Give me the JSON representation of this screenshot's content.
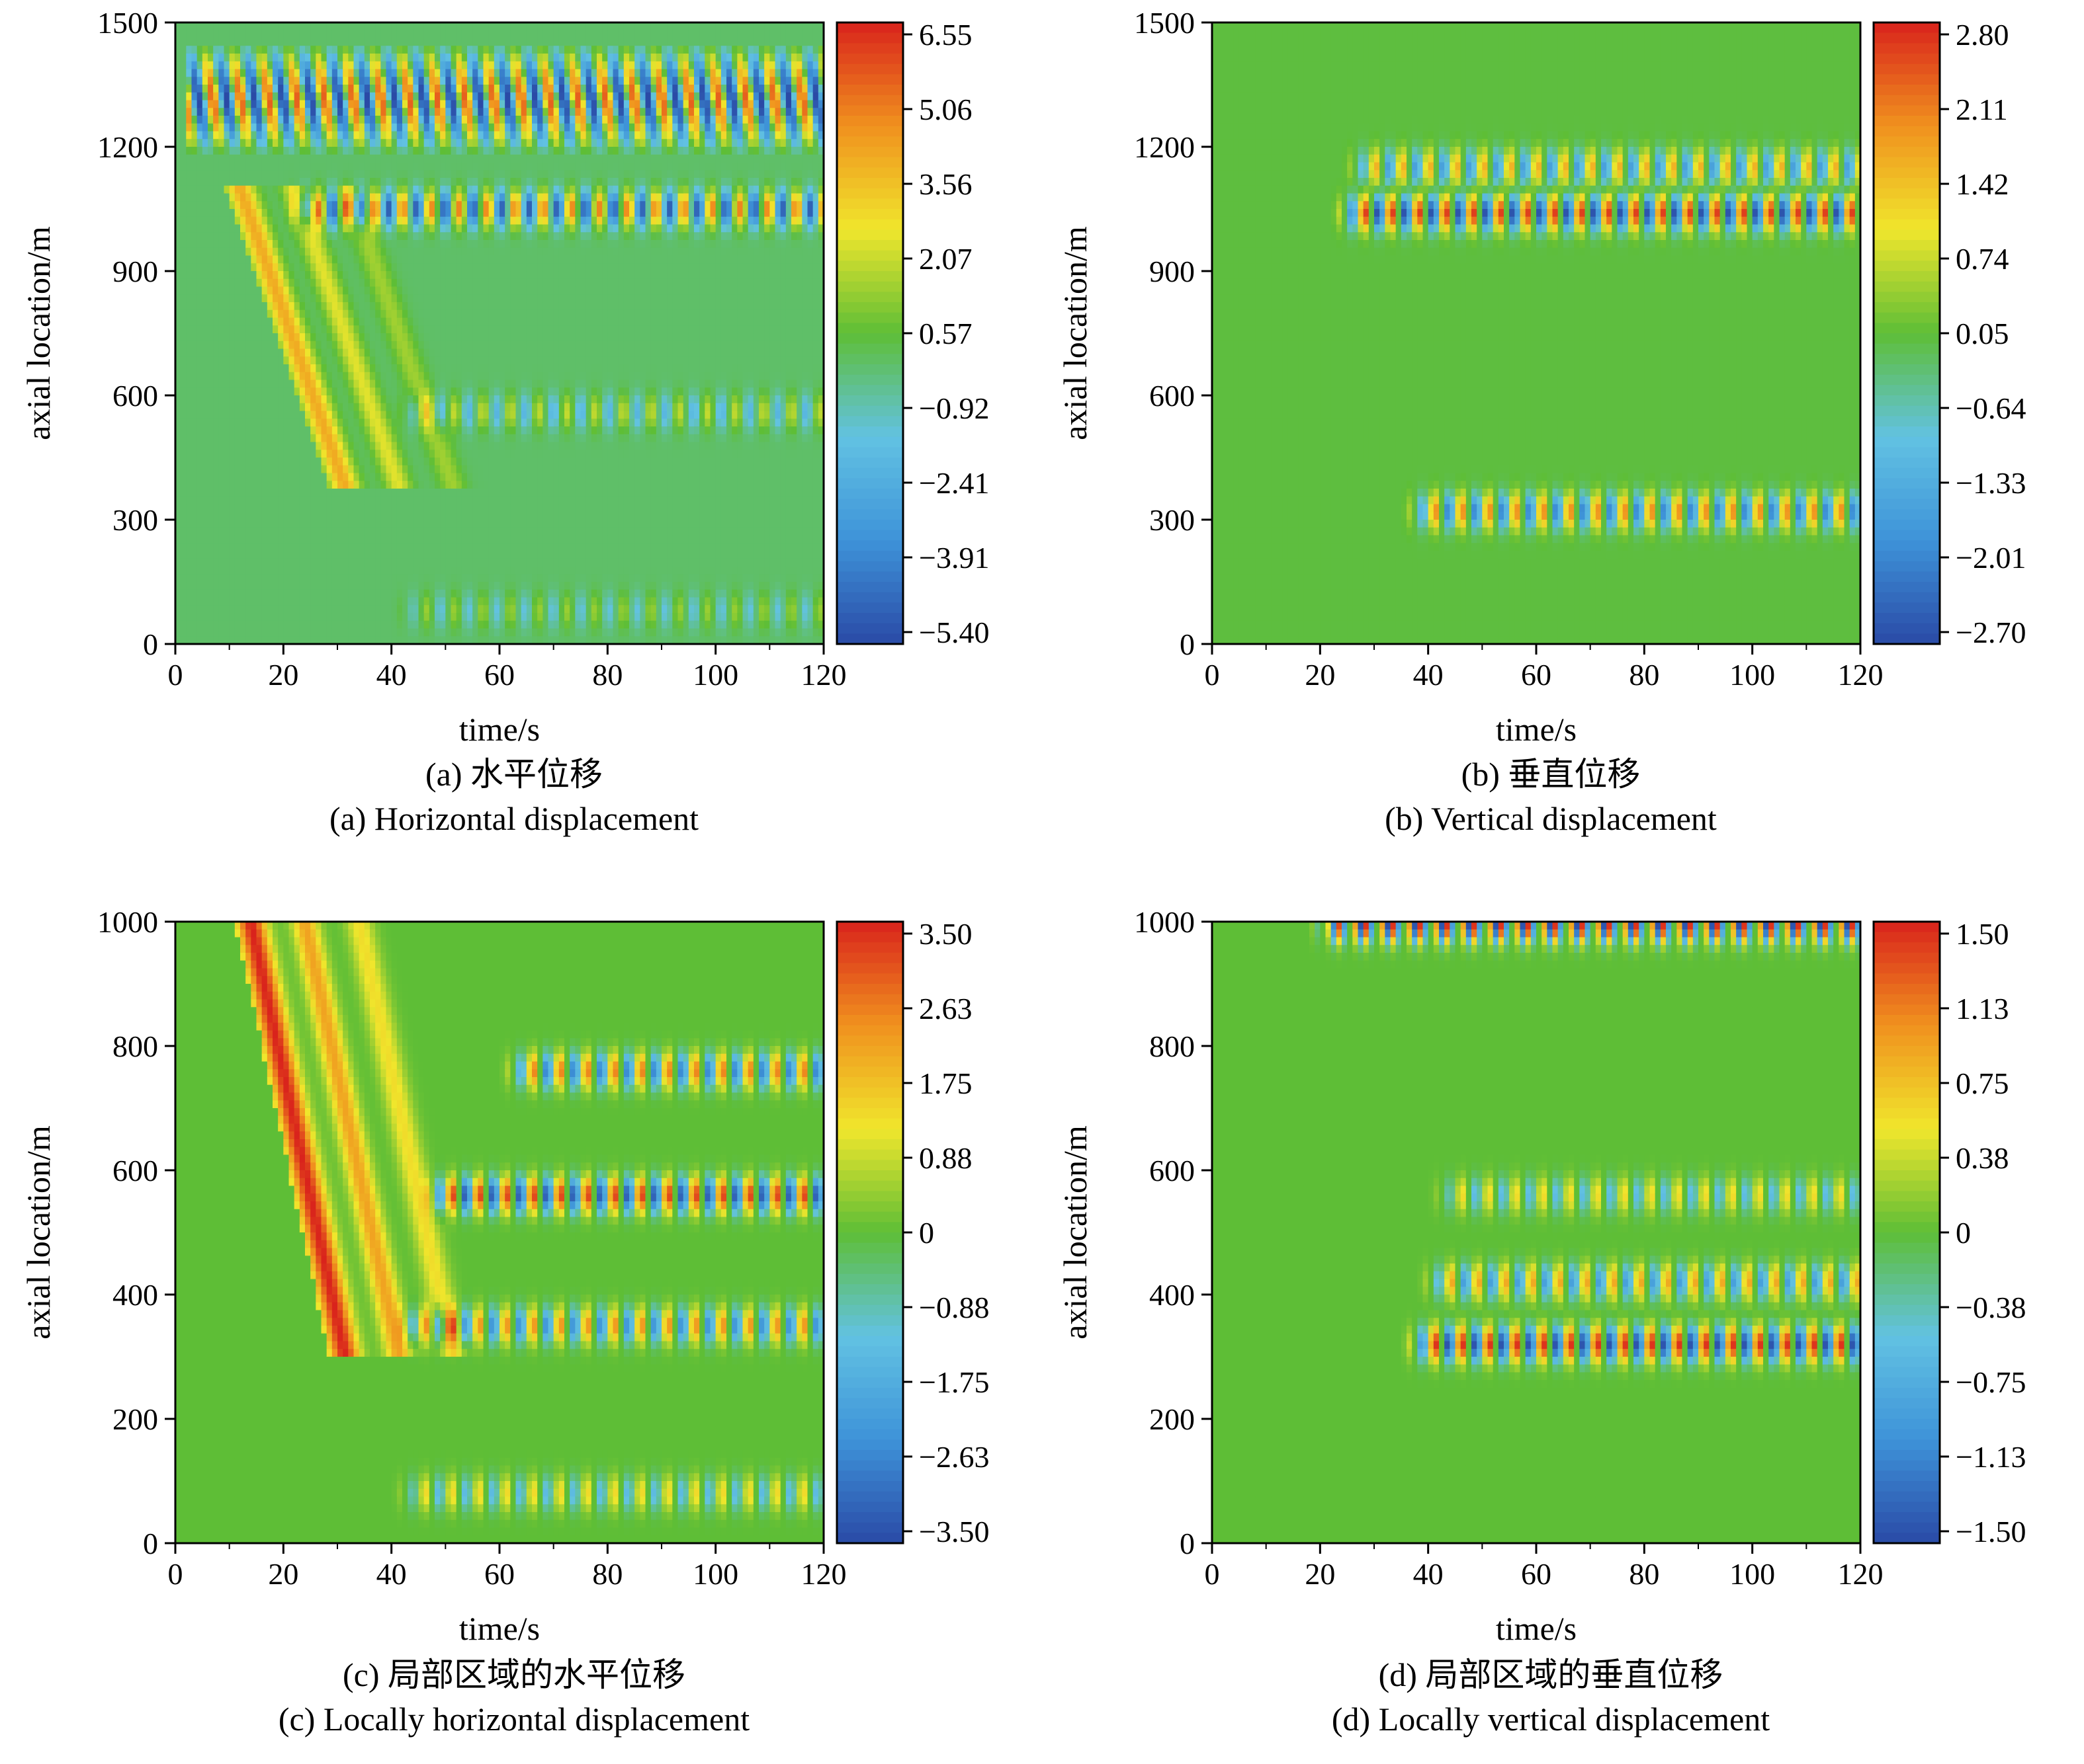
{
  "panels": [
    {
      "id": "a",
      "caption_cn": "(a) 水平位移",
      "caption_en": "(a) Horizontal displacement",
      "xlabel": "time/s",
      "ylabel": "axial location/m",
      "x_ticks": [
        "0",
        "20",
        "40",
        "60",
        "80",
        "100",
        "120"
      ],
      "y_ticks": [
        "0",
        "300",
        "600",
        "900",
        "1200",
        "1500"
      ],
      "colorbar_ticks": [
        "6.55",
        "5.06",
        "3.56",
        "2.07",
        "0.57",
        "−0.92",
        "−2.41",
        "−3.91",
        "−5.40"
      ]
    },
    {
      "id": "b",
      "caption_cn": "(b) 垂直位移",
      "caption_en": "(b) Vertical displacement",
      "xlabel": "time/s",
      "ylabel": "axial location/m",
      "x_ticks": [
        "0",
        "20",
        "40",
        "60",
        "80",
        "100",
        "120"
      ],
      "y_ticks": [
        "0",
        "300",
        "600",
        "900",
        "1200",
        "1500"
      ],
      "colorbar_ticks": [
        "2.80",
        "2.11",
        "1.42",
        "0.74",
        "0.05",
        "−0.64",
        "−1.33",
        "−2.01",
        "−2.70"
      ]
    },
    {
      "id": "c",
      "caption_cn": "(c) 局部区域的水平位移",
      "caption_en": "(c) Locally horizontal displacement",
      "xlabel": "time/s",
      "ylabel": "axial location/m",
      "x_ticks": [
        "0",
        "20",
        "40",
        "60",
        "80",
        "100",
        "120"
      ],
      "y_ticks": [
        "0",
        "200",
        "400",
        "600",
        "800",
        "1000"
      ],
      "colorbar_ticks": [
        "3.50",
        "2.63",
        "1.75",
        "0.88",
        "0",
        "−0.88",
        "−1.75",
        "−2.63",
        "−3.50"
      ]
    },
    {
      "id": "d",
      "caption_cn": "(d) 局部区域的垂直位移",
      "caption_en": "(d) Locally vertical displacement",
      "xlabel": "time/s",
      "ylabel": "axial location/m",
      "x_ticks": [
        "0",
        "20",
        "40",
        "60",
        "80",
        "100",
        "120"
      ],
      "y_ticks": [
        "0",
        "200",
        "400",
        "600",
        "800",
        "1000"
      ],
      "colorbar_ticks": [
        "1.50",
        "1.13",
        "0.75",
        "0.38",
        "0",
        "−0.38",
        "−0.75",
        "−1.13",
        "−1.50"
      ]
    }
  ],
  "chart_data": [
    {
      "type": "heatmap",
      "xlabel": "time/s",
      "ylabel": "axial location/m",
      "xlim": [
        0,
        120
      ],
      "ylim": [
        0,
        1500
      ],
      "colorbar_range": [
        -5.4,
        6.55
      ],
      "colorscale": [
        "#2a4aa6",
        "#3e93d8",
        "#62c2e2",
        "#5ebe36",
        "#f0e62c",
        "#f0911e",
        "#d9231c"
      ],
      "features": [
        {
          "kind": "oblique-bands",
          "t0": 2,
          "y_top": 1450,
          "y_bottom": 1180,
          "spacing": 5.2,
          "amplitude": 5.5
        },
        {
          "kind": "oscillation-row",
          "y_center": 1050,
          "t_start": 20,
          "period": 5.2,
          "amplitude": 5.0
        },
        {
          "kind": "wave-front",
          "t_start": 12,
          "y_top": 1100,
          "y_bottom": 380,
          "slope_s_per_m": 0.027,
          "amplitude": 4.0
        },
        {
          "kind": "oscillation-row",
          "y_center": 560,
          "t_start": 40,
          "period": 5.2,
          "amplitude": 2.0
        },
        {
          "kind": "oscillation-row",
          "y_center": 80,
          "t_start": 40,
          "period": 5.2,
          "amplitude": 1.4
        }
      ]
    },
    {
      "type": "heatmap",
      "xlabel": "time/s",
      "ylabel": "axial location/m",
      "xlim": [
        0,
        120
      ],
      "ylim": [
        0,
        1500
      ],
      "colorbar_range": [
        -2.7,
        2.8
      ],
      "colorscale": [
        "#2a4aa6",
        "#3e93d8",
        "#62c2e2",
        "#5ebe36",
        "#f0e62c",
        "#f0911e",
        "#d9231c"
      ],
      "features": [
        {
          "kind": "oscillation-row",
          "y_center": 1040,
          "t_start": 22,
          "period": 5.0,
          "amplitude": 2.7
        },
        {
          "kind": "oscillation-row",
          "y_center": 1150,
          "t_start": 24,
          "period": 5.0,
          "amplitude": 1.6
        },
        {
          "kind": "oscillation-row",
          "y_center": 320,
          "t_start": 35,
          "period": 5.0,
          "amplitude": 2.0
        }
      ]
    },
    {
      "type": "heatmap",
      "xlabel": "time/s",
      "ylabel": "axial location/m",
      "xlim": [
        0,
        120
      ],
      "ylim": [
        0,
        1000
      ],
      "colorbar_range": [
        -3.5,
        3.5
      ],
      "colorscale": [
        "#2a4aa6",
        "#3e93d8",
        "#62c2e2",
        "#5ebe36",
        "#f0e62c",
        "#f0911e",
        "#d9231c"
      ],
      "features": [
        {
          "kind": "wave-front",
          "t_start": 14,
          "y_top": 1000,
          "y_bottom": 300,
          "slope_s_per_m": 0.025,
          "amplitude": 3.5
        },
        {
          "kind": "oscillation-row",
          "y_center": 560,
          "t_start": 45,
          "period": 5.0,
          "amplitude": 3.3
        },
        {
          "kind": "oscillation-row",
          "y_center": 760,
          "t_start": 60,
          "period": 5.0,
          "amplitude": 2.6
        },
        {
          "kind": "oscillation-row",
          "y_center": 350,
          "t_start": 40,
          "period": 5.0,
          "amplitude": 2.4
        },
        {
          "kind": "oscillation-row",
          "y_center": 80,
          "t_start": 40,
          "period": 5.0,
          "amplitude": 1.4
        }
      ]
    },
    {
      "type": "heatmap",
      "xlabel": "time/s",
      "ylabel": "axial location/m",
      "xlim": [
        0,
        120
      ],
      "ylim": [
        0,
        1000
      ],
      "colorbar_range": [
        -1.5,
        1.5
      ],
      "colorscale": [
        "#2a4aa6",
        "#3e93d8",
        "#62c2e2",
        "#5ebe36",
        "#f0e62c",
        "#f0911e",
        "#d9231c"
      ],
      "features": [
        {
          "kind": "oscillation-row",
          "y_center": 320,
          "t_start": 35,
          "period": 5.0,
          "amplitude": 1.5
        },
        {
          "kind": "oscillation-row",
          "y_center": 420,
          "t_start": 38,
          "period": 5.0,
          "amplitude": 0.9
        },
        {
          "kind": "oscillation-row",
          "y_center": 995,
          "t_start": 18,
          "period": 2.5,
          "amplitude": 1.5
        },
        {
          "kind": "oscillation-row",
          "y_center": 560,
          "t_start": 40,
          "period": 5.0,
          "amplitude": 0.6
        }
      ]
    }
  ]
}
